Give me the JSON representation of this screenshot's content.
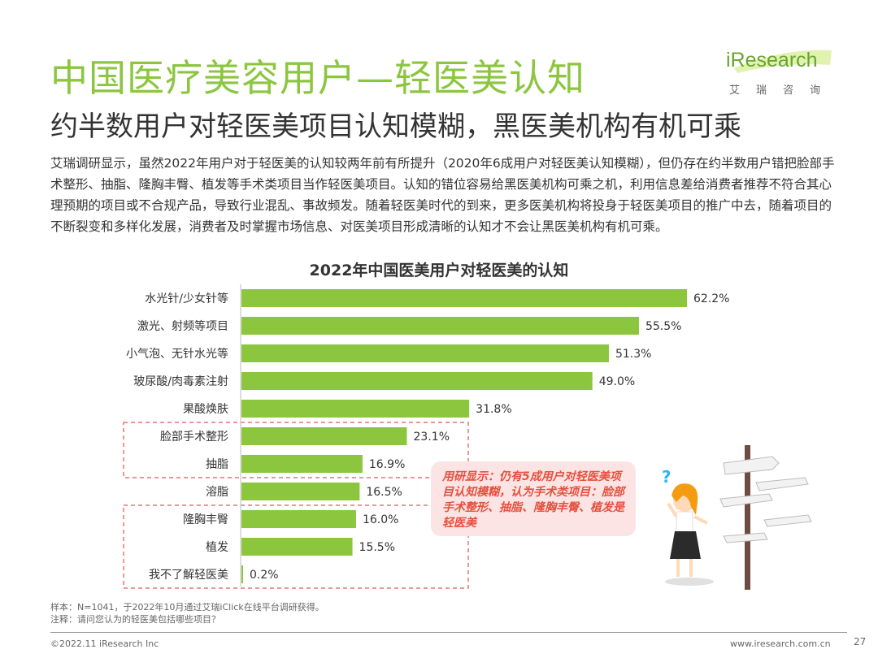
{
  "header": {
    "title": "中国医疗美容用户—轻医美认知",
    "subtitle": "约半数用户对轻医美项目认知模糊，黑医美机构有机可乘"
  },
  "logo": {
    "name": "iResearch",
    "sub": "艾瑞咨询"
  },
  "body_text": "艾瑞调研显示，虽然2022年用户对于轻医美的认知较两年前有所提升（2020年6成用户对轻医美认知模糊），但仍存在约半数用户错把脸部手术整形、抽脂、隆胸丰臀、植发等手术类项目当作轻医美项目。认知的错位容易给黑医美机构可乘之机，利用信息差给消费者推荐不符合其心理预期的项目或不合规产品，导致行业混乱、事故频发。随着轻医美时代的到来，更多医美机构将投身于轻医美项目的推广中去，随着项目的不断裂变和多样化发展，消费者及时掌握市场信息、对医美项目形成清晰的认知才不会让黑医美机构有机可乘。",
  "chart_data": {
    "type": "bar",
    "orientation": "horizontal",
    "title": "2022年中国医美用户对轻医美的认知",
    "categories": [
      "水光针/少女针等",
      "激光、射频等项目",
      "小气泡、无针水光等",
      "玻尿酸/肉毒素注射",
      "果酸焕肤",
      "脸部手术整形",
      "抽脂",
      "溶脂",
      "隆胸丰臀",
      "植发",
      "我不了解轻医美"
    ],
    "values": [
      62.2,
      55.5,
      51.3,
      49.0,
      31.8,
      23.1,
      16.9,
      16.5,
      16.0,
      15.5,
      0.2
    ],
    "value_labels": [
      "62.2%",
      "55.5%",
      "51.3%",
      "49.0%",
      "31.8%",
      "23.1%",
      "16.9%",
      "16.5%",
      "16.0%",
      "15.5%",
      "0.2%"
    ],
    "bar_color": "#8cc63f",
    "highlight_groups": [
      [
        "脸部手术整形",
        "抽脂"
      ],
      [
        "隆胸丰臀",
        "植发",
        "我不了解轻医美"
      ]
    ],
    "highlight_color": "#e57373"
  },
  "callout": {
    "text": "用研显示：仍有5成用户对轻医美项目认知模糊，认为手术类项目：脸部手术整形、抽脂、隆胸丰臀、植发是轻医美"
  },
  "footnote": {
    "sample": "样本：N=1041，于2022年10月通过艾瑞iClick在线平台调研获得。",
    "note": "注释：请问您认为的轻医美包括哪些项目？"
  },
  "footer": {
    "copyright": "©2022.11 iResearch Inc",
    "site": "www.iresearch.com.cn",
    "page": "27"
  }
}
